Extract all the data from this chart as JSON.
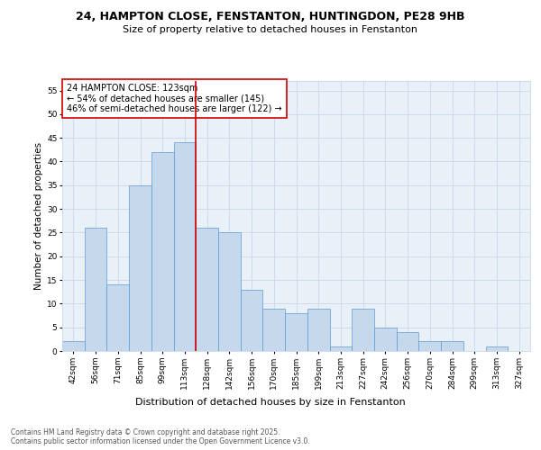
{
  "title_line1": "24, HAMPTON CLOSE, FENSTANTON, HUNTINGDON, PE28 9HB",
  "title_line2": "Size of property relative to detached houses in Fenstanton",
  "xlabel": "Distribution of detached houses by size in Fenstanton",
  "ylabel": "Number of detached properties",
  "categories": [
    "42sqm",
    "56sqm",
    "71sqm",
    "85sqm",
    "99sqm",
    "113sqm",
    "128sqm",
    "142sqm",
    "156sqm",
    "170sqm",
    "185sqm",
    "199sqm",
    "213sqm",
    "227sqm",
    "242sqm",
    "256sqm",
    "270sqm",
    "284sqm",
    "299sqm",
    "313sqm",
    "327sqm"
  ],
  "values": [
    2,
    26,
    14,
    35,
    42,
    44,
    26,
    25,
    13,
    9,
    8,
    9,
    1,
    9,
    5,
    4,
    2,
    2,
    0,
    1,
    0
  ],
  "bar_color": "#c5d8ec",
  "bar_edge_color": "#5b9bd5",
  "vline_x": 5.5,
  "vline_color": "#cc0000",
  "annotation_text": "24 HAMPTON CLOSE: 123sqm\n← 54% of detached houses are smaller (145)\n46% of semi-detached houses are larger (122) →",
  "annotation_box_color": "#ffffff",
  "annotation_box_edge_color": "#cc0000",
  "ylim": [
    0,
    57
  ],
  "yticks": [
    0,
    5,
    10,
    15,
    20,
    25,
    30,
    35,
    40,
    45,
    50,
    55
  ],
  "grid_color": "#c8d8e8",
  "bg_color": "#eaf0f8",
  "footer": "Contains HM Land Registry data © Crown copyright and database right 2025.\nContains public sector information licensed under the Open Government Licence v3.0.",
  "title_fontsize": 9,
  "subtitle_fontsize": 8,
  "xlabel_fontsize": 8,
  "ylabel_fontsize": 7.5,
  "tick_fontsize": 6.5,
  "annotation_fontsize": 7,
  "footer_fontsize": 5.5
}
